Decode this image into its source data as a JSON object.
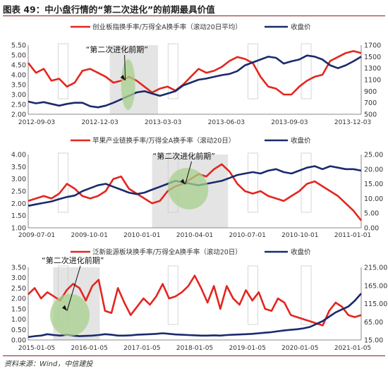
{
  "figure": {
    "title": "图表 49：中小盘行情的“第二次进化”的前期最具价值",
    "source": "资料来源：Wind，中信建投"
  },
  "colors": {
    "red": "#e3261f",
    "navy": "#1a2a6c",
    "shade": "#d9d9d9",
    "green": "#a8d08d"
  },
  "chart_data": [
    {
      "type": "line",
      "title": "",
      "annotation": "“第二次进化前期”",
      "x_ticks": [
        "2012-09-03",
        "2012-12-03",
        "2013-03-03",
        "2013-06-03",
        "2013-09-03",
        "2013-12-03"
      ],
      "left_axis": {
        "ticks": [
          "5.50",
          "5.00",
          "4.50",
          "4.00",
          "3.50",
          "3.00",
          "2.50",
          "2.00"
        ],
        "ylim": [
          2.0,
          5.5
        ]
      },
      "right_axis": {
        "ticks": [
          "1700",
          "1500",
          "1300",
          "1100",
          "900",
          "700",
          "500"
        ],
        "ylim": [
          500,
          1700
        ]
      },
      "series": [
        {
          "name": "创业板指换手率/万得全A换手率（滚动20日平均）",
          "axis": "left",
          "color": "red",
          "values": [
            4.6,
            4.1,
            4.3,
            3.7,
            3.8,
            3.4,
            3.6,
            4.2,
            4.3,
            4.1,
            3.9,
            3.6,
            3.7,
            3.9,
            3.7,
            3.4,
            3.1,
            3.3,
            3.4,
            3.2,
            3.5,
            3.9,
            4.3,
            4.1,
            4.2,
            4.4,
            4.7,
            4.9,
            4.8,
            4.6,
            3.9,
            3.4,
            3.3,
            3.0,
            3.0,
            3.4,
            3.7,
            3.9,
            4.0,
            4.7,
            4.9,
            5.1,
            5.2,
            5.1
          ]
        },
        {
          "name": "收盘价",
          "axis": "right",
          "color": "navy",
          "values": [
            720,
            690,
            710,
            680,
            650,
            680,
            700,
            700,
            640,
            620,
            650,
            700,
            760,
            820,
            880,
            900,
            860,
            820,
            860,
            900,
            1000,
            1050,
            1100,
            1120,
            1150,
            1180,
            1200,
            1250,
            1350,
            1400,
            1450,
            1500,
            1480,
            1380,
            1420,
            1450,
            1520,
            1500,
            1450,
            1350,
            1300,
            1350,
            1420,
            1500
          ]
        }
      ],
      "shade_range": [
        0.245,
        0.39
      ],
      "ellipse_center": [
        0.3,
        3.5
      ]
    },
    {
      "type": "line",
      "title": "",
      "annotation": "“第二次进化前期”",
      "x_ticks": [
        "2009-07-01",
        "2009-10-01",
        "2010-01-01",
        "2010-04-01",
        "2010-07-01",
        "2010-10-01",
        "2011-01-01"
      ],
      "left_axis": {
        "ticks": [
          "4.00",
          "3.50",
          "3.00",
          "2.50",
          "2.00",
          "1.50",
          "1.00"
        ],
        "ylim": [
          1.0,
          4.0
        ]
      },
      "right_axis": {
        "ticks": [
          "25.00",
          "20.00",
          "15.00",
          "10.00",
          "5.00",
          "0.00"
        ],
        "ylim": [
          0,
          25
        ]
      },
      "series": [
        {
          "name": "苹果产业链换手率/万得全A换手率（滚动20日）",
          "axis": "left",
          "color": "red",
          "values": [
            2.1,
            2.2,
            2.3,
            2.2,
            2.4,
            2.8,
            2.6,
            2.3,
            2.2,
            2.3,
            2.5,
            3.0,
            3.1,
            2.6,
            2.4,
            2.2,
            2.0,
            2.1,
            2.5,
            2.7,
            2.8,
            3.0,
            3.2,
            3.1,
            3.4,
            3.6,
            3.3,
            2.8,
            2.5,
            2.4,
            2.5,
            2.3,
            2.2,
            2.1,
            2.3,
            2.5,
            2.8,
            2.9,
            2.7,
            2.5,
            2.3,
            2.0,
            1.7,
            1.3
          ]
        },
        {
          "name": "收盘价",
          "axis": "right",
          "color": "navy",
          "values": [
            7.5,
            8.0,
            8.5,
            9.0,
            9.8,
            10.5,
            11.0,
            12.5,
            13.5,
            14.5,
            15.0,
            14.0,
            13.0,
            12.0,
            11.5,
            12.0,
            13.0,
            14.0,
            15.0,
            16.0,
            15.5,
            15.0,
            14.5,
            15.0,
            15.5,
            16.0,
            17.0,
            18.0,
            18.5,
            19.0,
            18.5,
            19.5,
            20.0,
            19.0,
            18.5,
            19.5,
            20.5,
            21.0,
            20.0,
            21.0,
            20.5,
            20.0,
            20.0,
            19.5
          ]
        }
      ],
      "shade_range": [
        0.372,
        0.6
      ],
      "ellipse_center": [
        0.48,
        2.6
      ]
    },
    {
      "type": "line",
      "title": "",
      "annotation": "“第二次进化前期”",
      "x_ticks": [
        "2015-01-05",
        "2016-01-05",
        "2017-01-05",
        "2018-01-05",
        "2019-01-05",
        "2020-01-05",
        "2021-01-05"
      ],
      "left_axis": {
        "ticks": [
          "3.50",
          "3.00",
          "2.50",
          "2.00",
          "1.50",
          "1.00",
          "0.50",
          "0.00"
        ],
        "ylim": [
          0.0,
          3.5
        ]
      },
      "right_axis": {
        "ticks": [
          "215.00",
          "165.00",
          "115.00",
          "65.00",
          "15.00"
        ],
        "ylim": [
          15,
          265
        ]
      },
      "series": [
        {
          "name": "泛新能源板块换手率/万得全A换手率（滚动20日）",
          "axis": "left",
          "color": "red",
          "values": [
            2.2,
            2.5,
            2.0,
            2.3,
            2.1,
            1.9,
            2.4,
            2.7,
            2.5,
            1.9,
            2.6,
            2.9,
            1.4,
            1.3,
            2.5,
            1.8,
            1.2,
            1.6,
            2.0,
            1.7,
            2.1,
            2.7,
            2.0,
            2.1,
            2.3,
            2.6,
            3.1,
            2.5,
            1.8,
            2.6,
            1.5,
            2.6,
            2.0,
            1.7,
            2.4,
            1.9,
            2.3,
            1.5,
            1.4,
            2.0,
            1.8,
            1.2,
            1.1,
            1.0,
            0.9,
            0.8,
            0.7,
            1.4,
            1.8,
            1.6,
            1.2,
            1.1,
            1.2
          ]
        },
        {
          "name": "收盘价",
          "axis": "right",
          "color": "navy",
          "values": [
            25,
            28,
            30,
            35,
            32,
            30,
            33,
            30,
            28,
            29,
            30,
            32,
            35,
            33,
            30,
            30,
            31,
            33,
            34,
            35,
            36,
            38,
            36,
            34,
            33,
            32,
            31,
            30,
            30,
            31,
            30,
            32,
            33,
            34,
            35,
            36,
            38,
            40,
            42,
            45,
            48,
            50,
            52,
            55,
            60,
            70,
            80,
            95,
            110,
            120,
            130,
            150,
            175
          ]
        }
      ],
      "shade_range": [
        0.075,
        0.215
      ],
      "ellipse_center": [
        0.125,
        1.2
      ]
    }
  ]
}
